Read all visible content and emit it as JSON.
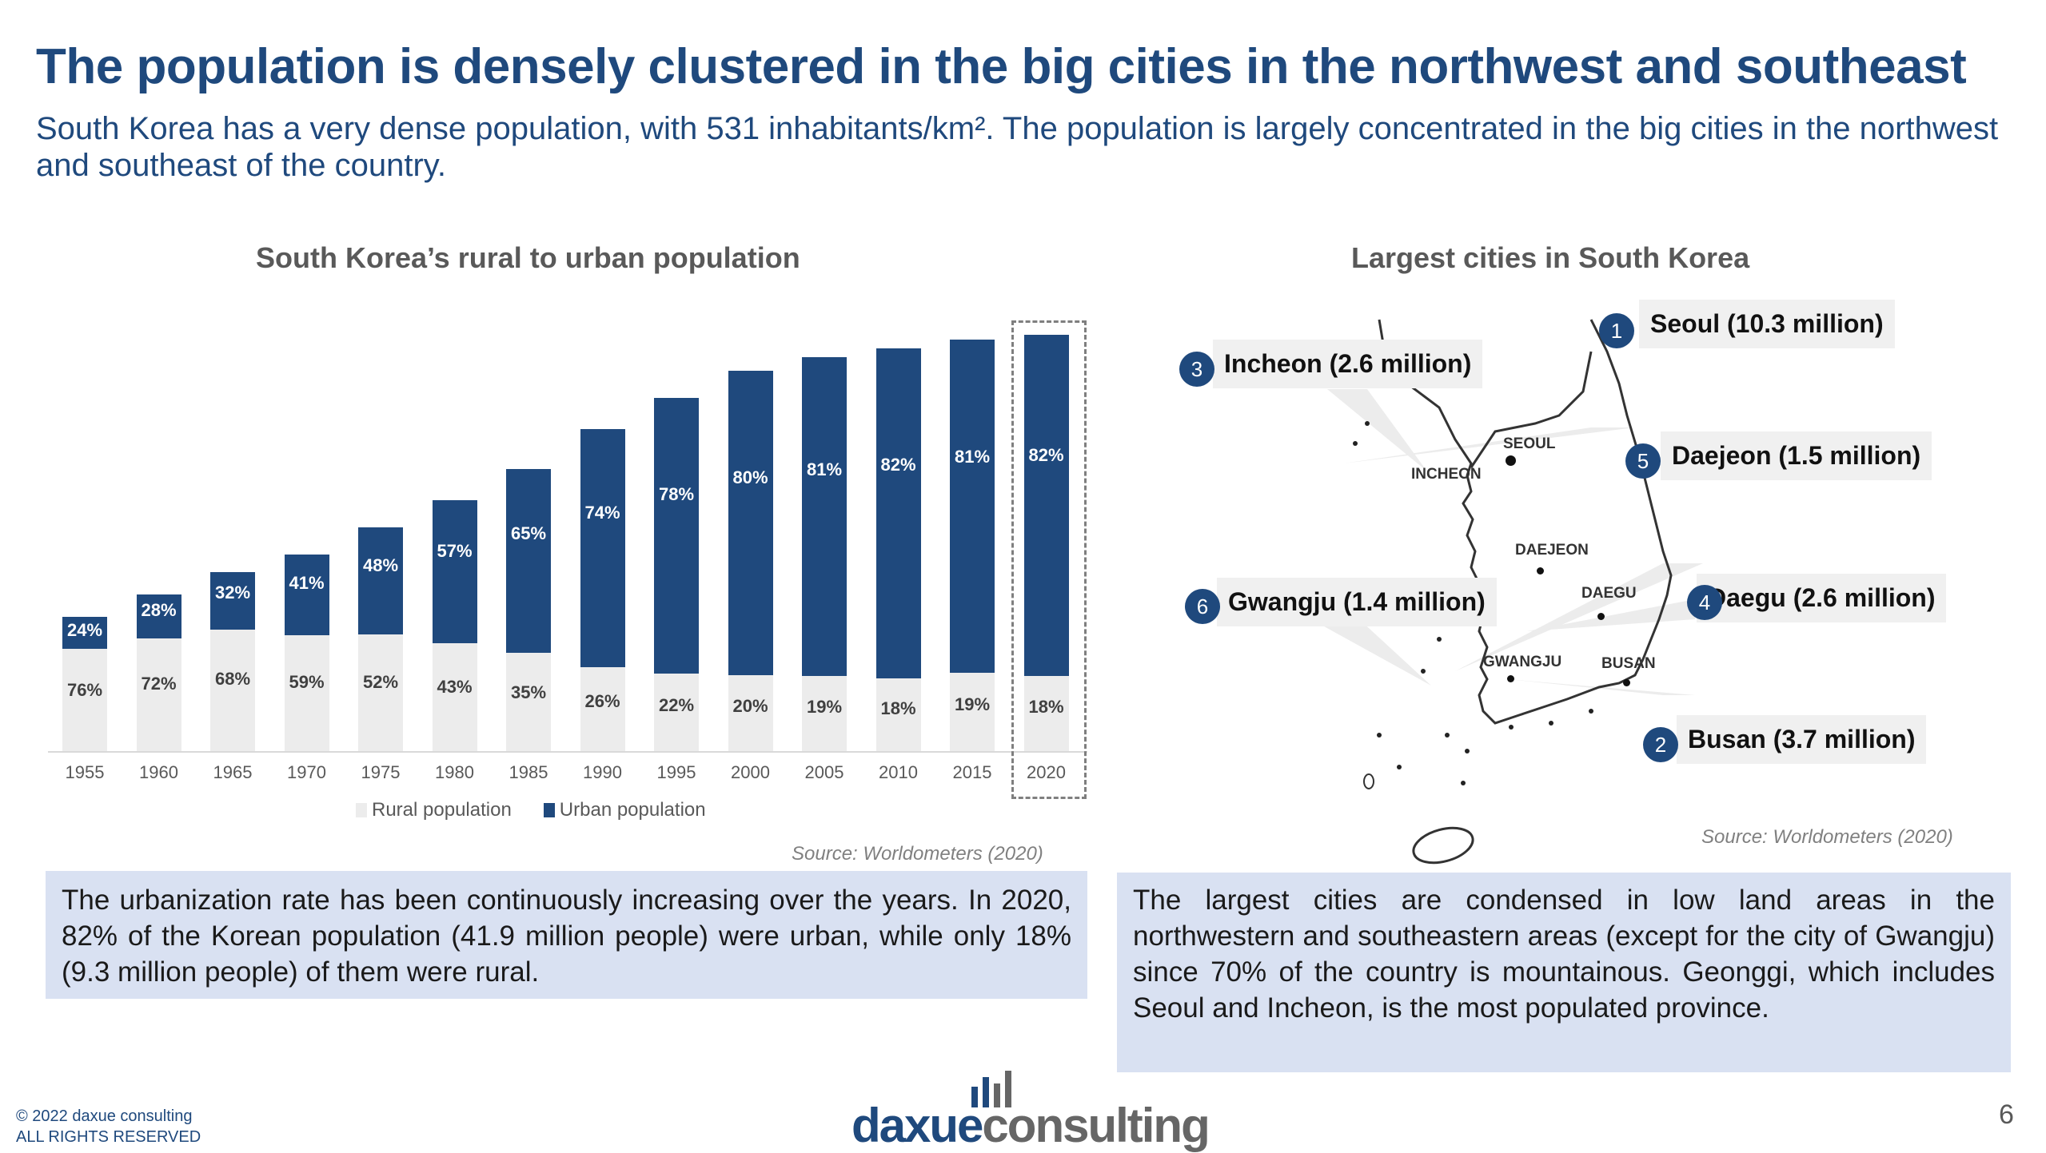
{
  "header": {
    "title": "The population is densely clustered in the big cities in the northwest and southeast",
    "subtitle": "South Korea has a very dense population, with 531 inhabitants/km². The population is largely concentrated in the big cities in the northwest and southeast of the country."
  },
  "left_panel": {
    "chart_title": "South Korea’s rural to urban population",
    "source": "Source: Worldometers (2020)",
    "note": "The urbanization rate has been continuously increasing over the years. In 2020,  82% of the Korean population (41.9 million people) were urban, while only 18% (9.3 million people) of them were rural.",
    "legend": {
      "rural": "Rural population",
      "urban": "Urban population"
    }
  },
  "right_panel": {
    "map_title": "Largest cities in South Korea",
    "source": "Source: Worldometers (2020)",
    "note": "The largest cities are condensed in low land areas in the northwestern and southeastern areas (except for the city of Gwangju) since 70% of the country is mountainous. Geonggi, which includes Seoul and Incheon, is the most populated province.",
    "callouts": [
      {
        "rank": "1",
        "label": "Seoul (10.3 million)"
      },
      {
        "rank": "2",
        "label": "Busan  (3.7 million)"
      },
      {
        "rank": "3",
        "label": "Incheon (2.6 million)"
      },
      {
        "rank": "4",
        "label": "Daegu (2.6 million)"
      },
      {
        "rank": "5",
        "label": "Daejeon (1.5 million)"
      },
      {
        "rank": "6",
        "label": "Gwangju (1.4 million)"
      }
    ],
    "map_labels": {
      "seoul": "SEOUL",
      "incheon": "INCHEON",
      "daejeon": "DAEJEON",
      "daegu": "DAEGU",
      "gwangju": "GWANGJU",
      "busan": "BUSAN"
    }
  },
  "footer": {
    "copyright": "© 2022 daxue consulting",
    "rights": "ALL RIGHTS RESERVED",
    "logo_part1": "daxue",
    "logo_part2": "consulting",
    "page_number": "6"
  },
  "colors": {
    "brand_blue": "#1f497d",
    "rural_gray": "#ececec",
    "note_bg": "#d9e1f2",
    "title_gray": "#595959"
  },
  "chart_data": {
    "type": "bar",
    "stacked": true,
    "title": "South Korea’s rural to urban population",
    "xlabel": "",
    "ylabel": "",
    "categories": [
      "1955",
      "1960",
      "1965",
      "1970",
      "1975",
      "1980",
      "1985",
      "1990",
      "1995",
      "2000",
      "2005",
      "2010",
      "2015",
      "2020"
    ],
    "series": [
      {
        "name": "Rural population",
        "color": "#ececec",
        "values": [
          76,
          72,
          68,
          59,
          52,
          43,
          35,
          26,
          22,
          20,
          19,
          18,
          19,
          18
        ]
      },
      {
        "name": "Urban population",
        "color": "#1f497d",
        "values": [
          24,
          28,
          32,
          41,
          48,
          57,
          65,
          74,
          78,
          80,
          81,
          82,
          81,
          82
        ]
      }
    ],
    "total_heights_rel": [
      0.3,
      0.35,
      0.4,
      0.44,
      0.5,
      0.56,
      0.63,
      0.72,
      0.79,
      0.85,
      0.88,
      0.9,
      0.92,
      0.93
    ],
    "highlighted_category": "2020",
    "legend_position": "bottom",
    "grid": false,
    "source": "Source: Worldometers (2020)"
  }
}
